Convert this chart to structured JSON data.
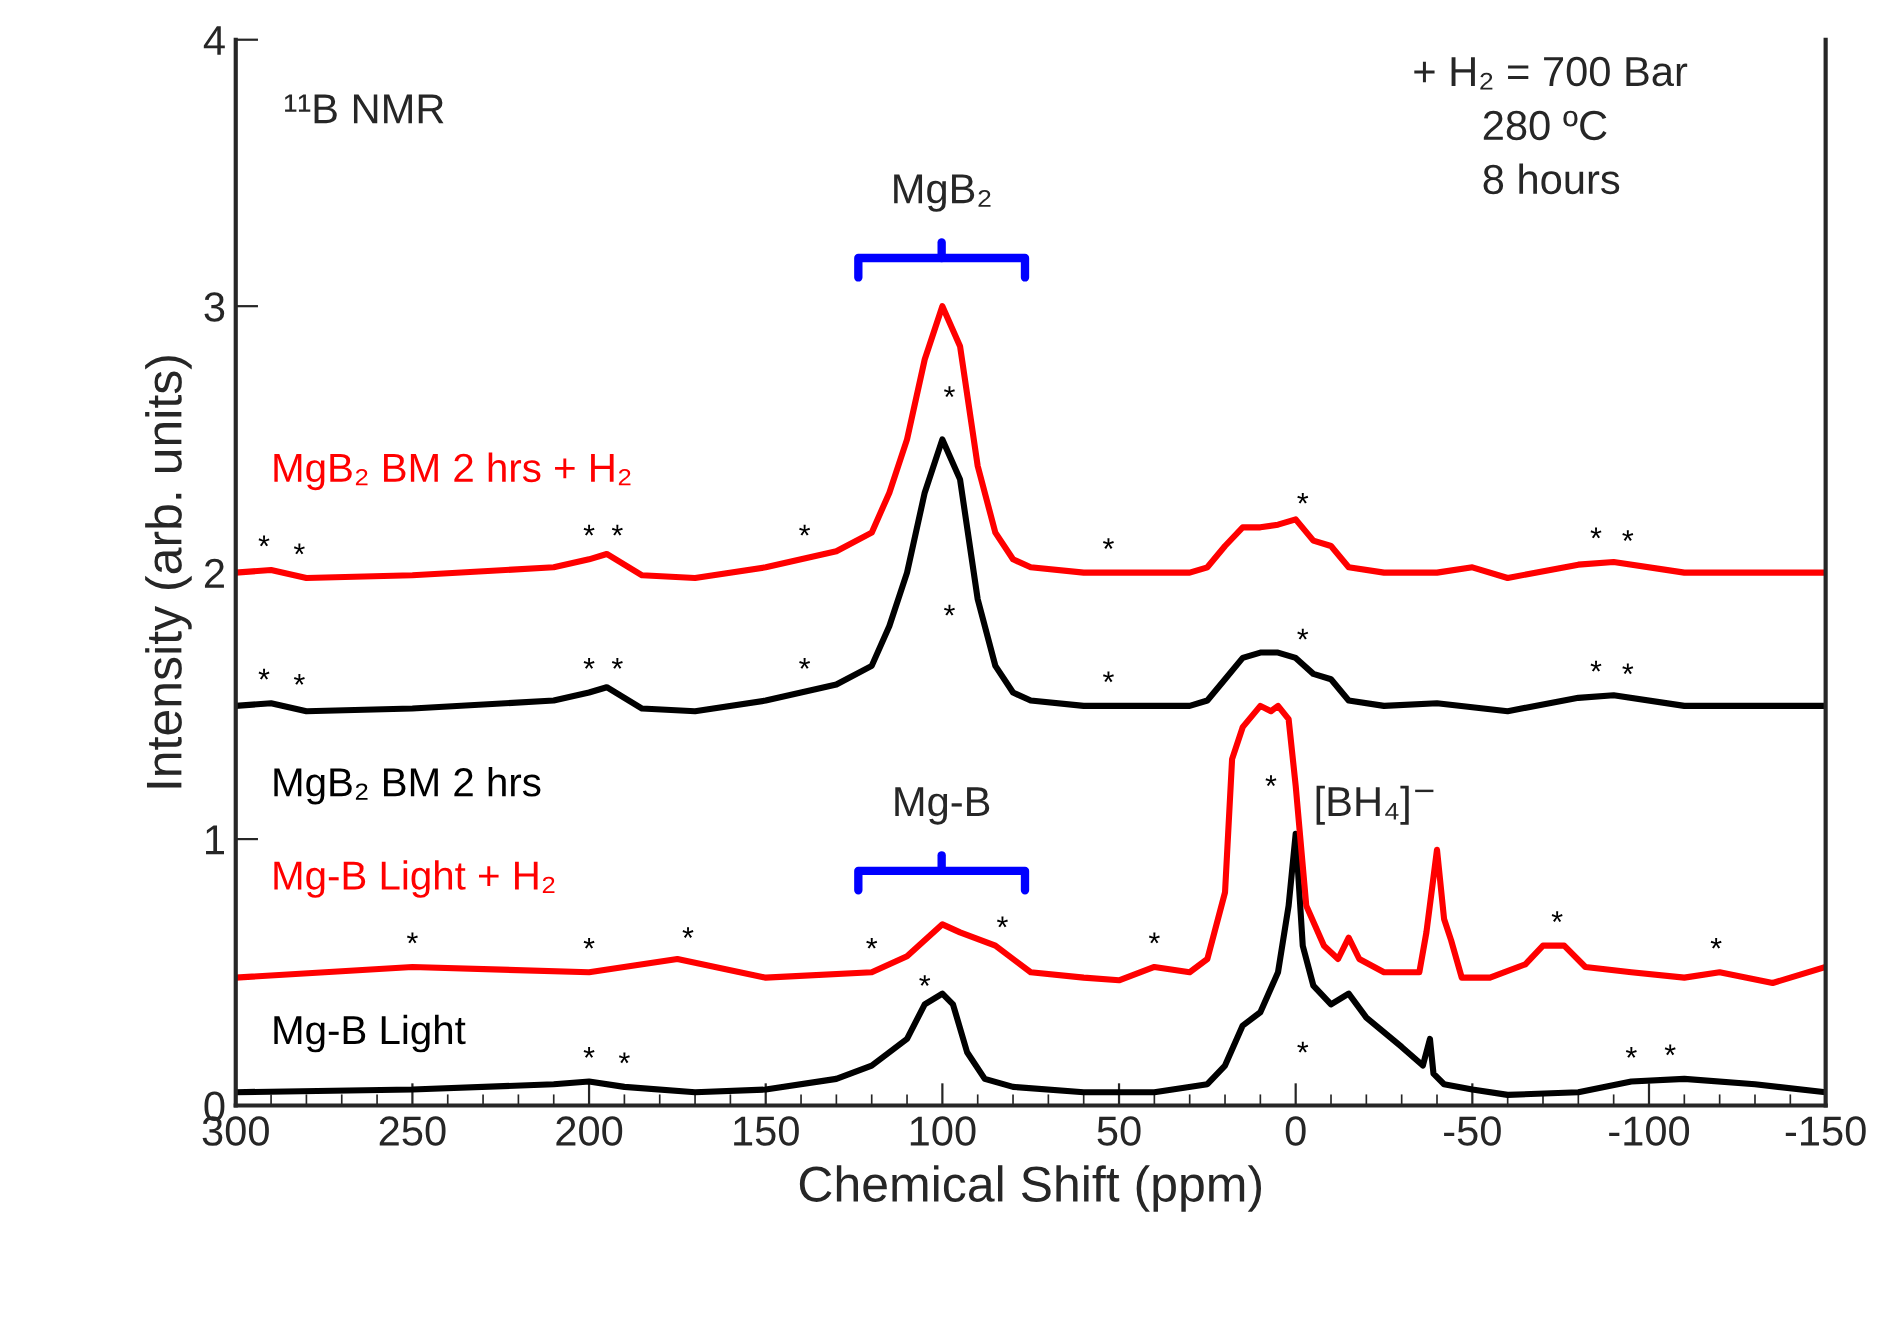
{
  "chart_data": {
    "type": "line",
    "xlabel": "Chemical Shift (ppm)",
    "ylabel": "Intensity (arb. units)",
    "xlim": [
      300,
      -150
    ],
    "xticks": [
      300,
      250,
      200,
      150,
      100,
      50,
      0,
      -50,
      -100,
      -150
    ],
    "ylim": [
      0,
      4
    ],
    "yticks": [
      0,
      1,
      2,
      3,
      4
    ],
    "series": [
      {
        "name": "Mg-B Light",
        "color": "#000000",
        "x": [
          300,
          250,
          210,
          200,
          190,
          170,
          150,
          130,
          120,
          110,
          105,
          100,
          97,
          93,
          88,
          80,
          60,
          40,
          25,
          20,
          15,
          10,
          5,
          2,
          0,
          -2,
          -5,
          -10,
          -15,
          -20,
          -30,
          -36,
          -38,
          -39,
          -42,
          -50,
          -60,
          -80,
          -95,
          -110,
          -130,
          -150
        ],
        "values": [
          0.05,
          0.06,
          0.08,
          0.09,
          0.07,
          0.05,
          0.06,
          0.1,
          0.15,
          0.25,
          0.38,
          0.42,
          0.38,
          0.2,
          0.1,
          0.07,
          0.05,
          0.05,
          0.08,
          0.15,
          0.3,
          0.35,
          0.5,
          0.75,
          1.02,
          0.6,
          0.45,
          0.38,
          0.42,
          0.33,
          0.22,
          0.15,
          0.25,
          0.12,
          0.08,
          0.06,
          0.04,
          0.05,
          0.09,
          0.1,
          0.08,
          0.05
        ]
      },
      {
        "name": "Mg-B Light + H₂",
        "color": "#ff0000",
        "x": [
          300,
          250,
          200,
          175,
          150,
          120,
          110,
          100,
          95,
          85,
          75,
          60,
          50,
          40,
          30,
          25,
          20,
          18,
          15,
          10,
          7,
          5,
          2,
          0,
          -3,
          -8,
          -12,
          -15,
          -18,
          -25,
          -35,
          -37,
          -40,
          -42,
          -44,
          -47,
          -55,
          -65,
          -70,
          -76,
          -82,
          -95,
          -110,
          -120,
          -135,
          -150
        ],
        "values": [
          0.48,
          0.52,
          0.5,
          0.55,
          0.48,
          0.5,
          0.56,
          0.68,
          0.65,
          0.6,
          0.5,
          0.48,
          0.47,
          0.52,
          0.5,
          0.55,
          0.8,
          1.3,
          1.42,
          1.5,
          1.48,
          1.5,
          1.45,
          1.2,
          0.75,
          0.6,
          0.55,
          0.63,
          0.55,
          0.5,
          0.5,
          0.65,
          0.96,
          0.7,
          0.62,
          0.48,
          0.48,
          0.53,
          0.6,
          0.6,
          0.52,
          0.5,
          0.48,
          0.5,
          0.46,
          0.52
        ]
      },
      {
        "name": "MgB₂ BM 2 hrs",
        "color": "#000000",
        "x": [
          300,
          290,
          280,
          250,
          210,
          200,
          195,
          185,
          170,
          150,
          130,
          120,
          115,
          110,
          105,
          100,
          95,
          90,
          85,
          80,
          75,
          60,
          40,
          30,
          25,
          20,
          15,
          10,
          5,
          0,
          -5,
          -10,
          -15,
          -25,
          -40,
          -60,
          -80,
          -90,
          -110,
          -150
        ],
        "values": [
          1.5,
          1.51,
          1.48,
          1.49,
          1.52,
          1.55,
          1.57,
          1.49,
          1.48,
          1.52,
          1.58,
          1.65,
          1.8,
          2.0,
          2.3,
          2.5,
          2.35,
          1.9,
          1.65,
          1.55,
          1.52,
          1.5,
          1.5,
          1.5,
          1.52,
          1.6,
          1.68,
          1.7,
          1.7,
          1.68,
          1.62,
          1.6,
          1.52,
          1.5,
          1.51,
          1.48,
          1.53,
          1.54,
          1.5,
          1.5
        ]
      },
      {
        "name": "MgB₂ BM 2 hrs + H₂",
        "color": "#ff0000",
        "x": [
          300,
          290,
          280,
          250,
          210,
          200,
          195,
          185,
          170,
          150,
          130,
          120,
          115,
          110,
          105,
          100,
          95,
          90,
          85,
          80,
          75,
          60,
          40,
          30,
          25,
          20,
          15,
          10,
          5,
          0,
          -5,
          -10,
          -15,
          -25,
          -40,
          -50,
          -60,
          -80,
          -90,
          -110,
          -150
        ],
        "values": [
          2.0,
          2.01,
          1.98,
          1.99,
          2.02,
          2.05,
          2.07,
          1.99,
          1.98,
          2.02,
          2.08,
          2.15,
          2.3,
          2.5,
          2.8,
          3.0,
          2.85,
          2.4,
          2.15,
          2.05,
          2.02,
          2.0,
          2.0,
          2.0,
          2.02,
          2.1,
          2.17,
          2.17,
          2.18,
          2.2,
          2.12,
          2.1,
          2.02,
          2.0,
          2.0,
          2.02,
          1.98,
          2.03,
          2.04,
          2.0,
          2.0
        ]
      }
    ],
    "annotations": [
      "¹¹B NMR",
      "+ H₂ = 700 Bar\n      280 ºC\n      8 hours",
      "MgB₂",
      "Mg-B",
      "[BH₄]$^{−}$",
      {
        "text": "*",
        "x": 292,
        "y": 2.01
      },
      {
        "text": "*",
        "x": 282,
        "y": 1.98
      },
      {
        "text": "*",
        "x": 200,
        "y": 2.05
      },
      {
        "text": "*",
        "x": 192,
        "y": 2.05
      },
      {
        "text": "*",
        "x": 139,
        "y": 2.05
      },
      "*",
      {
        "text": "*",
        "x": 53,
        "y": 2.0
      },
      {
        "text": "*",
        "x": -2,
        "y": 2.17
      },
      {
        "text": "*",
        "x": -85,
        "y": 2.04
      },
      {
        "text": "*",
        "x": -94,
        "y": 2.03
      },
      {
        "text": "*",
        "x": 292,
        "y": 1.51
      },
      {
        "text": "*",
        "x": 282,
        "y": 1.49
      },
      {
        "text": "*",
        "x": 200,
        "y": 1.55
      },
      {
        "text": "*",
        "x": 192,
        "y": 1.55
      },
      {
        "text": "*",
        "x": 139,
        "y": 1.55
      },
      "*",
      {
        "text": "*",
        "x": 53,
        "y": 1.5
      },
      {
        "text": "*",
        "x": -2,
        "y": 1.66
      },
      {
        "text": "*",
        "x": -85,
        "y": 1.54
      },
      {
        "text": "*",
        "x": -94,
        "y": 1.53
      },
      {
        "text": "*",
        "x": 250,
        "y": 0.52
      },
      {
        "text": "*",
        "x": 200,
        "y": 0.5
      },
      {
        "text": "*",
        "x": 172,
        "y": 0.54
      },
      {
        "text": "*",
        "x": 120,
        "y": 0.5
      },
      {
        "text": "*",
        "x": 83,
        "y": 0.58
      },
      {
        "text": "*",
        "x": 40,
        "y": 0.52
      },
      "*",
      {
        "text": "*",
        "x": -74,
        "y": 0.6
      },
      {
        "text": "*",
        "x": -119,
        "y": 0.5
      },
      {
        "text": "*",
        "x": 200,
        "y": 0.09
      },
      {
        "text": "*",
        "x": 190,
        "y": 0.07
      },
      {
        "text": "*",
        "x": 105,
        "y": 0.38
      },
      "*",
      {
        "text": "*",
        "x": -95,
        "y": 0.09
      },
      {
        "text": "*",
        "x": -106,
        "y": 0.1
      }
    ],
    "grid": false,
    "legend": false,
    "line_style": "solid",
    "marker": "none"
  }
}
